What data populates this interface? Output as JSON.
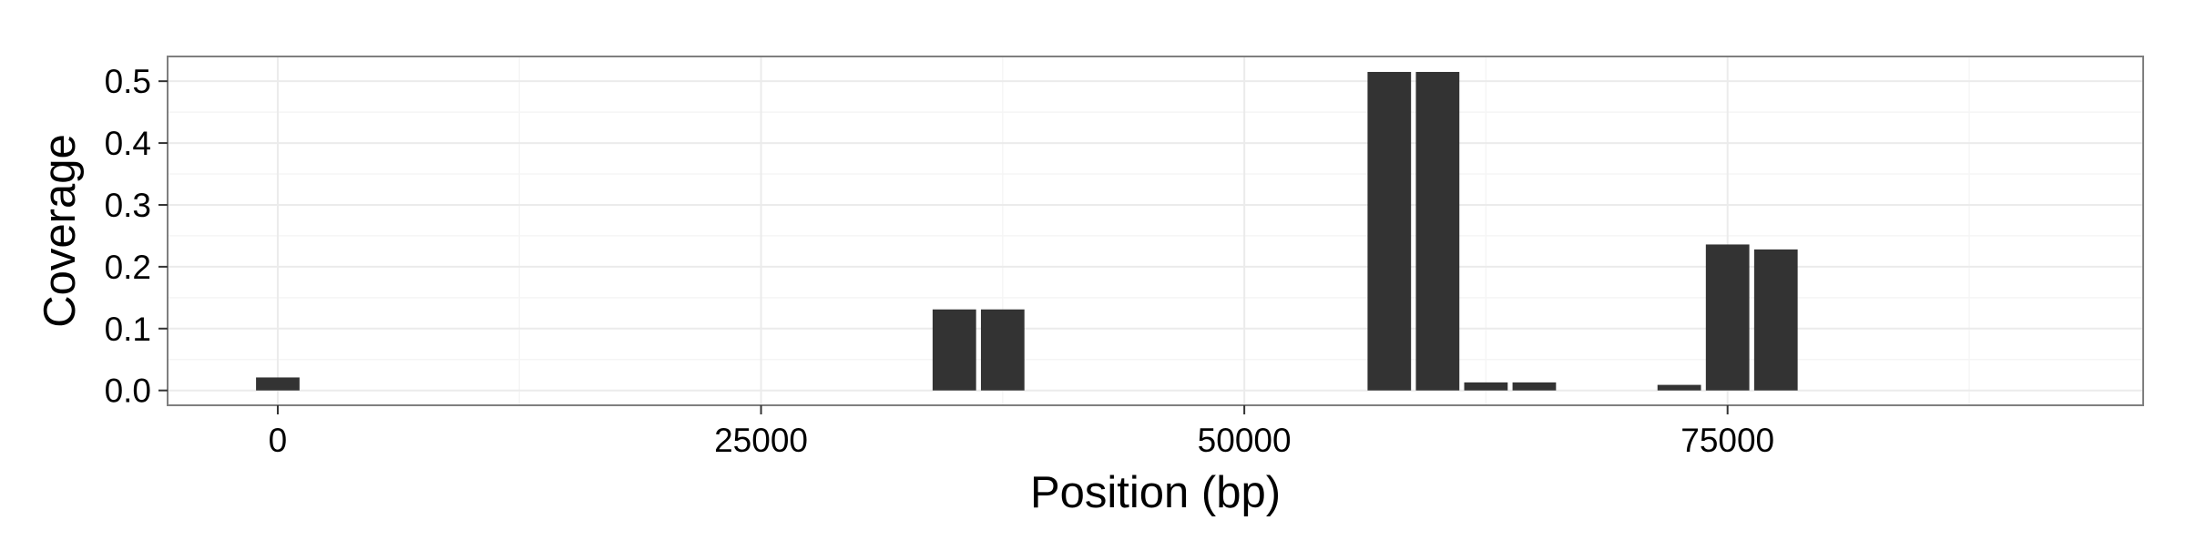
{
  "colors": {
    "background": "#ffffff",
    "bar": "#333333",
    "grid_major": "#ebebeb",
    "grid_minor": "#f5f5f5",
    "panel_border": "#7f7f7f",
    "tick": "#333333"
  },
  "chart_data": {
    "type": "bar",
    "title": "",
    "xlabel": "Position (bp)",
    "ylabel": "Coverage",
    "xlim": [
      -5700,
      96500
    ],
    "ylim": [
      -0.024,
      0.54
    ],
    "grid": true,
    "legend": "none",
    "x_ticks": [
      0,
      25000,
      50000,
      75000
    ],
    "x_tick_labels": [
      "0",
      "25000",
      "50000",
      "75000"
    ],
    "y_ticks": [
      0.0,
      0.1,
      0.2,
      0.3,
      0.4,
      0.5
    ],
    "y_tick_labels": [
      "0.0",
      "0.1",
      "0.2",
      "0.3",
      "0.4",
      "0.5"
    ],
    "bin_width": 2500,
    "bars": [
      {
        "x": 0,
        "y": 0.021
      },
      {
        "x": 35000,
        "y": 0.131
      },
      {
        "x": 37500,
        "y": 0.131
      },
      {
        "x": 57500,
        "y": 0.515
      },
      {
        "x": 60000,
        "y": 0.515
      },
      {
        "x": 62500,
        "y": 0.013
      },
      {
        "x": 65000,
        "y": 0.013
      },
      {
        "x": 72500,
        "y": 0.009
      },
      {
        "x": 75000,
        "y": 0.236
      },
      {
        "x": 77500,
        "y": 0.228
      }
    ]
  }
}
